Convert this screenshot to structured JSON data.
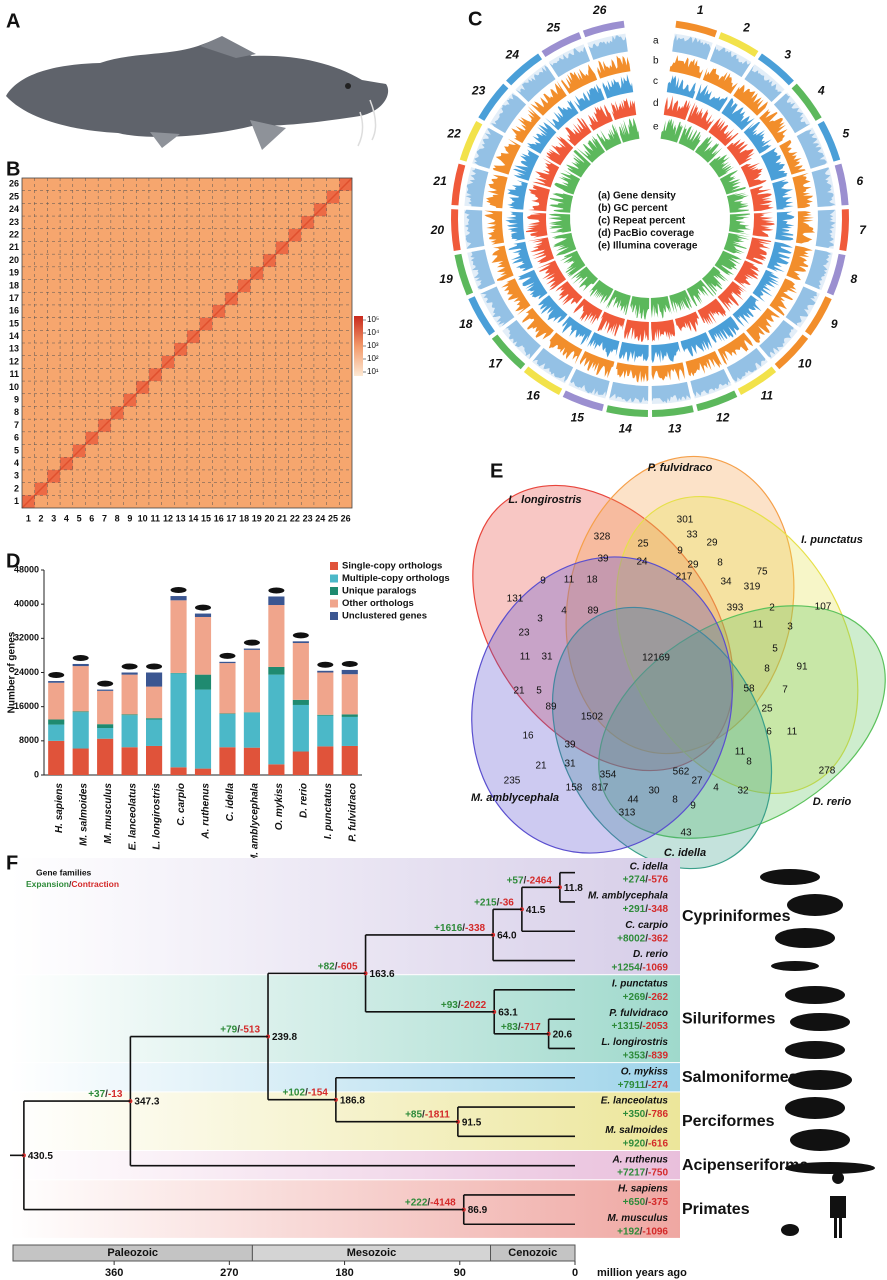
{
  "chart_data": [
    {
      "type": "image",
      "panel": "A"
    },
    {
      "type": "heatmap",
      "panel": "B",
      "categories": [
        "1",
        "2",
        "3",
        "4",
        "5",
        "6",
        "7",
        "8",
        "9",
        "10",
        "11",
        "12",
        "13",
        "14",
        "15",
        "16",
        "17",
        "18",
        "19",
        "20",
        "21",
        "22",
        "23",
        "24",
        "25",
        "26"
      ],
      "color": "#f6a66e",
      "diagonal_color": "#ec6a45",
      "colorbar_ticks": [
        {
          "value": 10,
          "label": "10¹"
        },
        {
          "value": 100,
          "label": "10²"
        },
        {
          "value": 1000,
          "label": "10³"
        },
        {
          "value": 10000,
          "label": "10⁴"
        },
        {
          "value": 100000,
          "label": "10⁵"
        }
      ]
    },
    {
      "type": "circos",
      "panel": "C",
      "chromosomes": [
        {
          "name": "1",
          "color": "#f28e2b"
        },
        {
          "name": "2",
          "color": "#f2e24a"
        },
        {
          "name": "3",
          "color": "#4a9fd8"
        },
        {
          "name": "4",
          "color": "#5cb85c"
        },
        {
          "name": "5",
          "color": "#4a9fd8"
        },
        {
          "name": "6",
          "color": "#9b8fd0"
        },
        {
          "name": "7",
          "color": "#f05a3a"
        },
        {
          "name": "8",
          "color": "#9b8fd0"
        },
        {
          "name": "9",
          "color": "#f28e2b"
        },
        {
          "name": "10",
          "color": "#f28e2b"
        },
        {
          "name": "11",
          "color": "#f2e24a"
        },
        {
          "name": "12",
          "color": "#5cb85c"
        },
        {
          "name": "13",
          "color": "#5cb85c"
        },
        {
          "name": "14",
          "color": "#5cb85c"
        },
        {
          "name": "15",
          "color": "#9b8fd0"
        },
        {
          "name": "16",
          "color": "#f2e24a"
        },
        {
          "name": "17",
          "color": "#5cb85c"
        },
        {
          "name": "18",
          "color": "#4a9fd8"
        },
        {
          "name": "19",
          "color": "#5cb85c"
        },
        {
          "name": "20",
          "color": "#f05a3a"
        },
        {
          "name": "21",
          "color": "#f05a3a"
        },
        {
          "name": "22",
          "color": "#f2e24a"
        },
        {
          "name": "23",
          "color": "#4a9fd8"
        },
        {
          "name": "24",
          "color": "#4a9fd8"
        },
        {
          "name": "25",
          "color": "#9b8fd0"
        },
        {
          "name": "26",
          "color": "#9b8fd0"
        }
      ],
      "tracks": [
        {
          "letter": "a",
          "label": "(a) Gene density",
          "color": "#7fb5e0"
        },
        {
          "letter": "b",
          "label": "(b) GC percent",
          "color": "#f28e2b"
        },
        {
          "letter": "c",
          "label": "(c) Repeat percent",
          "color": "#4a9fd8"
        },
        {
          "letter": "d",
          "label": "(d) PacBio coverage",
          "color": "#f05a3a"
        },
        {
          "letter": "e",
          "label": "(e) Illumina coverage",
          "color": "#5cb85c"
        }
      ]
    },
    {
      "type": "bar",
      "panel": "D",
      "ylabel": "Number of genes",
      "categories": [
        "H. sapiens",
        "M. salmoides",
        "M. musculus",
        "E. lanceolatus",
        "L. longirostris",
        "C. carpio",
        "A. ruthenus",
        "C. idella",
        "M. amblycephala",
        "O. mykiss",
        "D. rerio",
        "I. punctatus",
        "P. fulvidraco"
      ],
      "series": [
        {
          "name": "Single-copy orthologs",
          "color": "#e0533a",
          "values": [
            8000,
            6200,
            8500,
            6500,
            6800,
            1800,
            1500,
            6500,
            6400,
            2500,
            5500,
            6700,
            6800
          ]
        },
        {
          "name": "Multiple-copy orthologs",
          "color": "#4bb8c8",
          "values": [
            3800,
            8500,
            2500,
            7500,
            6200,
            22000,
            18500,
            7800,
            8200,
            21000,
            10900,
            7200,
            6800
          ]
        },
        {
          "name": "Unique paralogs",
          "color": "#1f8a70",
          "values": [
            1200,
            200,
            900,
            200,
            300,
            100,
            3500,
            100,
            100,
            1800,
            1200,
            200,
            600
          ]
        },
        {
          "name": "Other orthologs",
          "color": "#f0a58c",
          "values": [
            8600,
            10600,
            7800,
            9300,
            7400,
            17000,
            13500,
            11800,
            14600,
            14500,
            13300,
            9900,
            9400
          ]
        },
        {
          "name": "Unclustered genes",
          "color": "#3b5691",
          "values": [
            400,
            500,
            300,
            500,
            3300,
            1000,
            800,
            300,
            300,
            2000,
            400,
            400,
            1000
          ]
        }
      ],
      "ylim": [
        0,
        48000
      ],
      "yticks": [
        0,
        8000,
        16000,
        24000,
        32000,
        40000,
        48000
      ]
    },
    {
      "type": "venn",
      "panel": "E",
      "sets": [
        {
          "name": "L. longirostris",
          "color": "#e8453c"
        },
        {
          "name": "P. fulvidraco",
          "color": "#f5a04a"
        },
        {
          "name": "I. punctatus",
          "color": "#e6e04a"
        },
        {
          "name": "D. rerio",
          "color": "#5cc25c"
        },
        {
          "name": "C. idella",
          "color": "#3aa08a"
        },
        {
          "name": "M. amblycephala",
          "color": "#5a4fcf"
        }
      ],
      "values": [
        301,
        328,
        25,
        33,
        39,
        9,
        29,
        24,
        29,
        8,
        217,
        75,
        131,
        9,
        11,
        18,
        34,
        319,
        89,
        393,
        4,
        3,
        2,
        11,
        3,
        107,
        23,
        5,
        91,
        11,
        31,
        12169,
        8,
        58,
        7,
        21,
        5,
        89,
        1502,
        25,
        6,
        11,
        16,
        39,
        278,
        21,
        31,
        11,
        8,
        235,
        354,
        562,
        158,
        817,
        27,
        4,
        32,
        30,
        44,
        8,
        9,
        313,
        43
      ]
    },
    {
      "type": "tree",
      "panel": "F",
      "legend_title": "Gene families",
      "expansion_label": "Expansion",
      "contraction_label": "Contraction",
      "separator": "/",
      "expansion_color": "#2e8b3a",
      "contraction_color": "#d42a2a",
      "age_color": "#2a5aa8",
      "xlim": [
        439,
        0
      ],
      "xticks": [
        360,
        270,
        180,
        90,
        0
      ],
      "xlabel": "million years ago",
      "eras": [
        {
          "name": "Paleozoic",
          "end": 252
        },
        {
          "name": "Mesozoic",
          "end": 66
        },
        {
          "name": "Cenozoic",
          "end": 0
        }
      ],
      "clades": [
        {
          "name": "Cypriniformes",
          "color": "#9b59b6",
          "band": "#d6cde8"
        },
        {
          "name": "Siluriformes",
          "color": "#1a9a8a",
          "band": "#9fd9cc"
        },
        {
          "name": "Salmoniformes",
          "color": "#2a8fc4",
          "band": "#9fd4ea"
        },
        {
          "name": "Perciformes",
          "color": "#d4a017",
          "band": "#ece69a"
        },
        {
          "name": "Acipenseriforme",
          "color": "#c966b0",
          "band": "#e9bfdc"
        },
        {
          "name": "Primates",
          "color": "#e05050",
          "band": "#efa7a2"
        }
      ],
      "tree": {
        "age": 430.5,
        "children": [
          {
            "age": 347.3,
            "expansion": "+37",
            "contraction": "-13",
            "children": [
              {
                "age": 239.8,
                "expansion": "+79",
                "contraction": "-513",
                "children": [
                  {
                    "age": 163.6,
                    "expansion": "+82",
                    "contraction": "-605",
                    "children": [
                      {
                        "age": {
                          "value": 64,
                          "label": "64.0"
                        },
                        "expansion": "+1616",
                        "contraction": "-338",
                        "children": [
                          {
                            "age": 41.5,
                            "expansion": "+215",
                            "contraction": "-36",
                            "children": [
                              {
                                "age": 11.8,
                                "expansion": "+57",
                                "contraction": "-2464",
                                "children": [
                                  {
                                    "name": "C. idella",
                                    "expansion": "+274",
                                    "contraction": "-576"
                                  },
                                  {
                                    "name": "M. amblycephala",
                                    "expansion": "+291",
                                    "contraction": "-348"
                                  }
                                ]
                              },
                              {
                                "name": "C. carpio",
                                "expansion": "+8002",
                                "contraction": "-362"
                              }
                            ]
                          },
                          {
                            "name": "D. rerio",
                            "expansion": "+1254",
                            "contraction": "-1069"
                          }
                        ]
                      },
                      {
                        "age": 63.1,
                        "expansion": "+93",
                        "contraction": "-2022",
                        "children": [
                          {
                            "name": "I. punctatus",
                            "expansion": "+269",
                            "contraction": "-262"
                          },
                          {
                            "age": 20.6,
                            "expansion": "+83",
                            "contraction": "-717",
                            "children": [
                              {
                                "name": "P. fulvidraco",
                                "expansion": "+1315",
                                "contraction": "-2053"
                              },
                              {
                                "name": "L. longirostris",
                                "expansion": "+353",
                                "contraction": "-839"
                              }
                            ]
                          }
                        ]
                      }
                    ]
                  },
                  {
                    "age": 186.8,
                    "expansion": "+102",
                    "contraction": "-154",
                    "children": [
                      {
                        "name": "O. mykiss",
                        "expansion": "+7911",
                        "contraction": "-274"
                      },
                      {
                        "age": 91.5,
                        "expansion": "+85",
                        "contraction": "-1811",
                        "children": [
                          {
                            "name": "E. lanceolatus",
                            "expansion": "+350",
                            "contraction": "-786"
                          },
                          {
                            "name": "M. salmoides",
                            "expansion": "+920",
                            "contraction": "-616"
                          }
                        ]
                      }
                    ]
                  }
                ]
              },
              {
                "name": "A. ruthenus",
                "expansion": "+7217",
                "contraction": "-750"
              }
            ]
          },
          {
            "age": 86.9,
            "expansion": "+222",
            "contraction": "-4148",
            "children": [
              {
                "name": "H. sapiens",
                "expansion": "+650",
                "contraction": "-375"
              },
              {
                "name": "M. musculus",
                "expansion": "+192",
                "contraction": "-1096"
              }
            ]
          }
        ]
      }
    }
  ]
}
